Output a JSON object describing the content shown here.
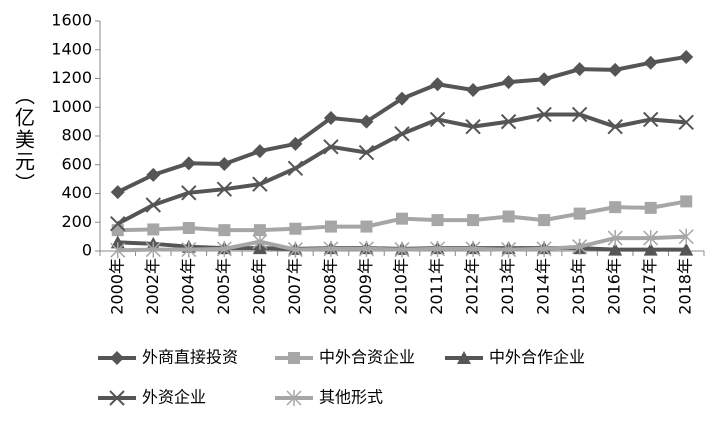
{
  "chart_data": {
    "type": "line",
    "y_label": "（亿美元）",
    "categories": [
      "2000年",
      "2002年",
      "2004年",
      "2005年",
      "2006年",
      "2007年",
      "2008年",
      "2009年",
      "2010年",
      "2011年",
      "2012年",
      "2013年",
      "2014年",
      "2015年",
      "2016年",
      "2017年",
      "2018年"
    ],
    "series": [
      {
        "name": "外商直接投资",
        "color": "#555555",
        "marker": "diamond",
        "values": [
          410,
          530,
          610,
          605,
          695,
          745,
          925,
          900,
          1060,
          1160,
          1120,
          1175,
          1195,
          1265,
          1260,
          1310,
          1350
        ]
      },
      {
        "name": "中外合资企业",
        "color": "#a6a6a6",
        "marker": "square",
        "values": [
          145,
          150,
          160,
          145,
          145,
          155,
          170,
          170,
          225,
          215,
          215,
          240,
          215,
          260,
          305,
          300,
          345
        ]
      },
      {
        "name": "中外合作企业",
        "color": "#555555",
        "marker": "triangle",
        "values": [
          60,
          50,
          30,
          20,
          20,
          15,
          20,
          20,
          15,
          20,
          20,
          20,
          20,
          20,
          10,
          10,
          10
        ]
      },
      {
        "name": "外资企业",
        "color": "#555555",
        "marker": "x",
        "values": [
          190,
          320,
          405,
          430,
          465,
          575,
          725,
          685,
          815,
          915,
          865,
          900,
          950,
          950,
          865,
          915,
          895
        ]
      },
      {
        "name": "其他形式",
        "color": "#a6a6a6",
        "marker": "star",
        "values": [
          5,
          10,
          10,
          15,
          65,
          10,
          15,
          15,
          10,
          15,
          15,
          10,
          15,
          30,
          90,
          90,
          100
        ]
      }
    ],
    "ylim": [
      0,
      1600
    ],
    "yticks": [
      0,
      200,
      400,
      600,
      800,
      1000,
      1200,
      1400,
      1600
    ],
    "grid": false
  }
}
